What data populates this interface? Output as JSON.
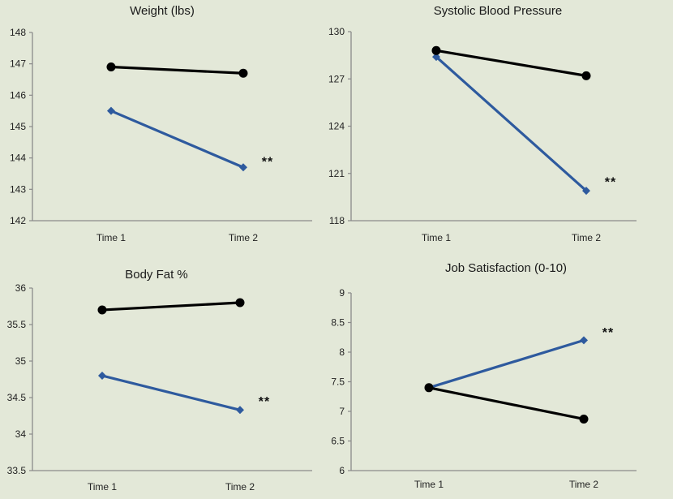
{
  "chart_data": [
    {
      "type": "line",
      "title": "Weight (lbs)",
      "categories": [
        "Time 1",
        "Time 2"
      ],
      "ylim": [
        142,
        148
      ],
      "yticks": [
        "142",
        "143",
        "144",
        "145",
        "146",
        "147",
        "148"
      ],
      "series": [
        {
          "values": [
            146.9,
            146.7
          ],
          "color": "#000000",
          "marker": "circle"
        },
        {
          "values": [
            145.5,
            143.7
          ],
          "color": "#2e5a9e",
          "marker": "diamond"
        }
      ],
      "annotation": {
        "text": "**",
        "category": "Time 2",
        "y": 144.0
      }
    },
    {
      "type": "line",
      "title": "Systolic Blood Pressure",
      "categories": [
        "Time 1",
        "Time 2"
      ],
      "ylim": [
        118,
        130
      ],
      "yticks": [
        "118",
        "121",
        "124",
        "127",
        "130"
      ],
      "series": [
        {
          "values": [
            128.8,
            127.2
          ],
          "color": "#000000",
          "marker": "circle"
        },
        {
          "values": [
            128.4,
            119.9
          ],
          "color": "#2e5a9e",
          "marker": "diamond"
        }
      ],
      "annotation": {
        "text": "**",
        "category": "Time 2",
        "y": 120.7
      }
    },
    {
      "type": "line",
      "title": "Body Fat %",
      "categories": [
        "Time 1",
        "Time 2"
      ],
      "ylim": [
        33.5,
        36
      ],
      "yticks": [
        "33.5",
        "34",
        "34.5",
        "35",
        "35.5",
        "36"
      ],
      "series": [
        {
          "values": [
            35.7,
            35.8
          ],
          "color": "#000000",
          "marker": "circle"
        },
        {
          "values": [
            34.8,
            34.33
          ],
          "color": "#2e5a9e",
          "marker": "diamond"
        }
      ],
      "annotation": {
        "text": "**",
        "category": "Time 2",
        "y": 34.5
      }
    },
    {
      "type": "line",
      "title": "Job Satisfaction (0-10)",
      "categories": [
        "Time 1",
        "Time 2"
      ],
      "ylim": [
        6,
        9
      ],
      "yticks": [
        "6",
        "6.5",
        "7",
        "7.5",
        "8",
        "8.5",
        "9"
      ],
      "series": [
        {
          "values": [
            7.4,
            6.87
          ],
          "color": "#000000",
          "marker": "circle"
        },
        {
          "values": [
            7.4,
            8.2
          ],
          "color": "#2e5a9e",
          "marker": "diamond"
        }
      ],
      "annotation": {
        "text": "**",
        "category": "Time 2",
        "y": 8.4
      }
    }
  ]
}
